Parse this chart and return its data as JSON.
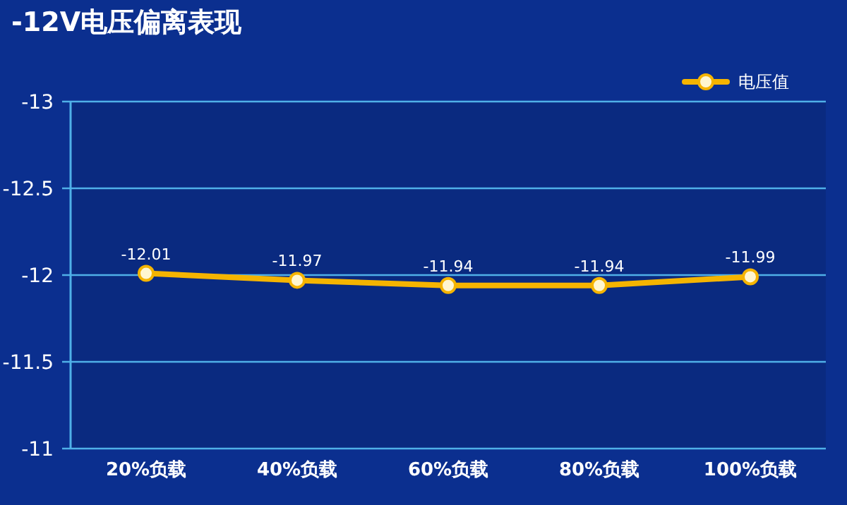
{
  "chart_data": {
    "type": "line",
    "title": "-12V电压偏离表现",
    "categories": [
      "20%负载",
      "40%负载",
      "60%负载",
      "80%负载",
      "100%负载"
    ],
    "series": [
      {
        "name": "电压值",
        "color": "#f5b400",
        "values": [
          -12.01,
          -11.97,
          -11.94,
          -11.94,
          -11.99
        ]
      }
    ],
    "ylim": [
      -11,
      -13
    ],
    "yticks": [
      -13,
      -12.5,
      -12,
      -11.5,
      -11
    ],
    "grid": "y",
    "legend": "top right",
    "marker": "circle",
    "line_style": "solid",
    "data_labels": true
  }
}
